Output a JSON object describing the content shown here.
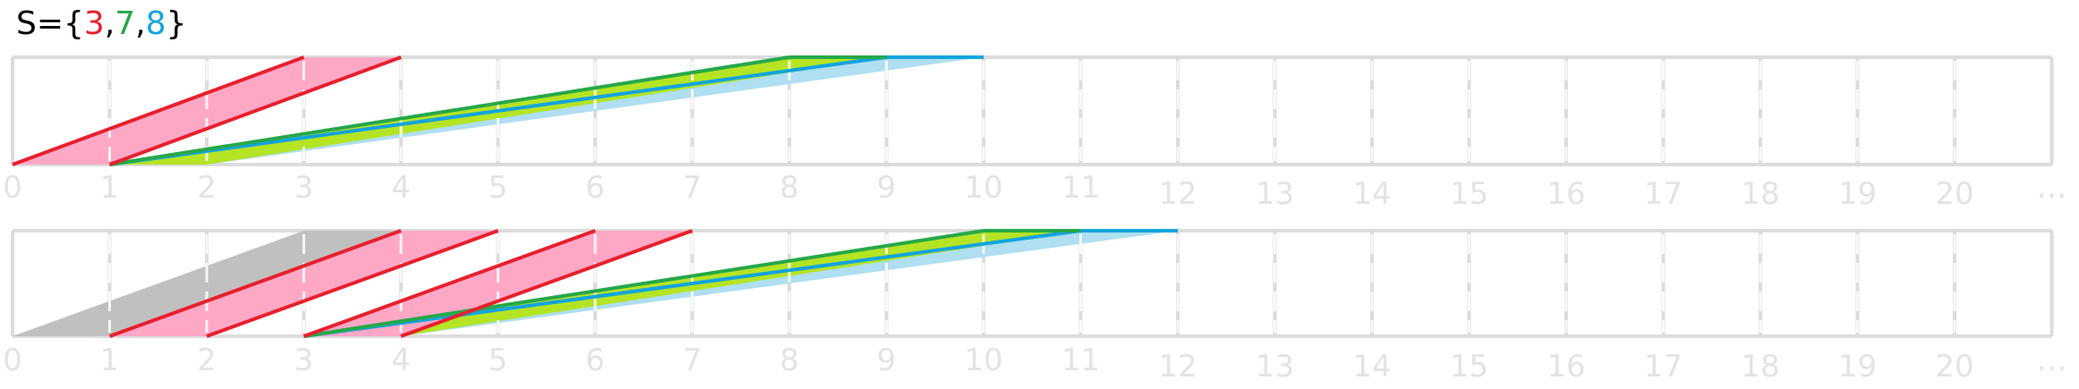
{
  "title": {
    "prefix": "S={",
    "sep1": ",",
    "sep2": ",",
    "suffix": "}",
    "values": [
      {
        "text": "3",
        "color": "#e8202e"
      },
      {
        "text": "7",
        "color": "#27a84a"
      },
      {
        "text": "8",
        "color": "#14a4dd"
      }
    ],
    "text_color": "#000000"
  },
  "tick_labels": [
    "0",
    "1",
    "2",
    "3",
    "4",
    "5",
    "6",
    "7",
    "8",
    "9",
    "10",
    "11",
    "12",
    "13",
    "14",
    "15",
    "16",
    "17",
    "18",
    "19",
    "20",
    "…"
  ],
  "colors": {
    "grid": "#dcdcdc",
    "red_line": "#e8202e",
    "red_fill": "#ffa8c6",
    "green_line": "#27a84a",
    "green_fill": "#b4e424",
    "blue_line": "#14a4dd",
    "blue_fill": "#a6dcf0",
    "gray_fill": "#c0c0c0",
    "tick_text": "#e3e3e3"
  },
  "diagrams": [
    {
      "name": "row-1",
      "gray": null,
      "shapes": [
        {
          "kind": "red",
          "start": 0,
          "duration": 3
        },
        {
          "kind": "green",
          "start": 1,
          "duration": 7
        },
        {
          "kind": "blue",
          "start": 1,
          "duration": 8
        }
      ]
    },
    {
      "name": "row-2",
      "gray": {
        "start": 0,
        "duration": 3
      },
      "shapes": [
        {
          "kind": "red",
          "start": 1,
          "duration": 3
        },
        {
          "kind": "red",
          "start": 3,
          "duration": 3
        },
        {
          "kind": "green",
          "start": 3,
          "duration": 7
        },
        {
          "kind": "blue",
          "start": 3,
          "duration": 8
        }
      ]
    }
  ]
}
